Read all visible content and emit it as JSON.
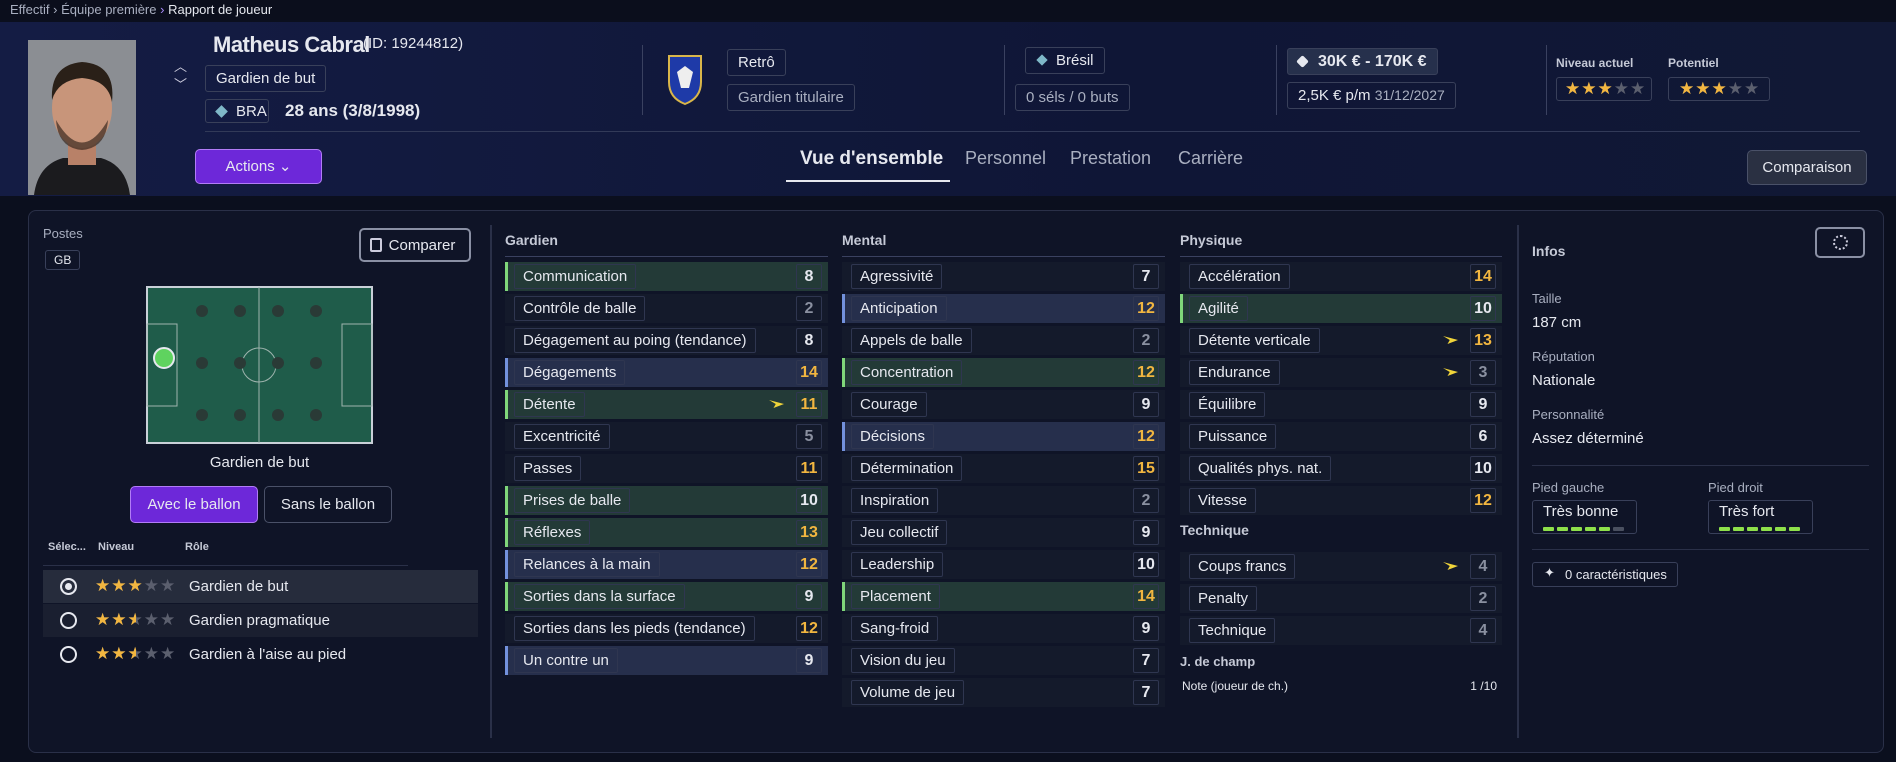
{
  "breadcrumb": [
    "Effectif",
    "Équipe première",
    "Rapport de joueur"
  ],
  "header": {
    "name": "Matheus Cabral",
    "id": "(ID: 19244812)",
    "position": "Gardien de but",
    "nation_code": "BRA",
    "age": "28 ans (3/8/1998)",
    "club": "Retrô",
    "squad_status": "Gardien titulaire",
    "country": "Brésil",
    "caps": "0 séls / 0 buts",
    "value": "30K € - 170K €",
    "wage": "2,5K € p/m",
    "contract_end": "31/12/2027",
    "current_ability": {
      "label": "Niveau actuel",
      "stars": 3
    },
    "potential_ability": {
      "label": "Potentiel",
      "stars": 3
    },
    "actions": "Actions",
    "compare": "Comparaison"
  },
  "tabs": [
    "Vue d'ensemble",
    "Personnel",
    "Prestation",
    "Carrière"
  ],
  "positions": {
    "title": "Postes",
    "code": "GB",
    "compare": "Comparer",
    "selected": "Gardien de but",
    "toggle": [
      "Avec le ballon",
      "Sans le ballon"
    ],
    "columns": [
      "Sélec...",
      "Niveau",
      "Rôle"
    ],
    "roles": [
      {
        "name": "Gardien de but",
        "stars": 3
      },
      {
        "name": "Gardien pragmatique",
        "stars": 2.5
      },
      {
        "name": "Gardien à l'aise au pied",
        "stars": 2.5
      }
    ]
  },
  "attributes": [
    {
      "title": "Gardien",
      "rows": [
        {
          "name": "Communication",
          "value": 8,
          "tint": "green"
        },
        {
          "name": "Contrôle de balle",
          "value": 2
        },
        {
          "name": "Dégagement au poing (tendance)",
          "value": 8
        },
        {
          "name": "Dégagements",
          "value": 14,
          "tint": "blue"
        },
        {
          "name": "Détente",
          "value": 11,
          "tint": "green",
          "arrow": true
        },
        {
          "name": "Excentricité",
          "value": 5
        },
        {
          "name": "Passes",
          "value": 11
        },
        {
          "name": "Prises de balle",
          "value": 10,
          "tint": "green"
        },
        {
          "name": "Réflexes",
          "value": 13,
          "tint": "green"
        },
        {
          "name": "Relances à la main",
          "value": 12,
          "tint": "blue"
        },
        {
          "name": "Sorties dans la surface",
          "value": 9,
          "tint": "green"
        },
        {
          "name": "Sorties dans les pieds (tendance)",
          "value": 12
        },
        {
          "name": "Un contre un",
          "value": 9,
          "tint": "blue"
        }
      ]
    },
    {
      "title": "Mental",
      "rows": [
        {
          "name": "Agressivité",
          "value": 7
        },
        {
          "name": "Anticipation",
          "value": 12,
          "tint": "blue"
        },
        {
          "name": "Appels de balle",
          "value": 2
        },
        {
          "name": "Concentration",
          "value": 12,
          "tint": "green"
        },
        {
          "name": "Courage",
          "value": 9
        },
        {
          "name": "Décisions",
          "value": 12,
          "tint": "blue"
        },
        {
          "name": "Détermination",
          "value": 15
        },
        {
          "name": "Inspiration",
          "value": 2
        },
        {
          "name": "Jeu collectif",
          "value": 9
        },
        {
          "name": "Leadership",
          "value": 10
        },
        {
          "name": "Placement",
          "value": 14,
          "tint": "green"
        },
        {
          "name": "Sang-froid",
          "value": 9
        },
        {
          "name": "Vision du jeu",
          "value": 7
        },
        {
          "name": "Volume de jeu",
          "value": 7
        }
      ]
    },
    {
      "title": "Physique",
      "rows": [
        {
          "name": "Accélération",
          "value": 14
        },
        {
          "name": "Agilité",
          "value": 10,
          "tint": "green"
        },
        {
          "name": "Détente verticale",
          "value": 13,
          "arrow": true
        },
        {
          "name": "Endurance",
          "value": 3,
          "arrow": true
        },
        {
          "name": "Équilibre",
          "value": 9
        },
        {
          "name": "Puissance",
          "value": 6
        },
        {
          "name": "Qualités phys. nat.",
          "value": 10
        },
        {
          "name": "Vitesse",
          "value": 12
        }
      ]
    },
    {
      "title": "Technique",
      "rows": [
        {
          "name": "Coups francs",
          "value": 4,
          "arrow": true
        },
        {
          "name": "Penalty",
          "value": 2
        },
        {
          "name": "Technique",
          "value": 4
        }
      ]
    }
  ],
  "outfield": {
    "title": "J. de champ",
    "label": "Note (joueur de ch.)",
    "value": "1 /10"
  },
  "info": {
    "title": "Infos",
    "height": {
      "label": "Taille",
      "value": "187 cm"
    },
    "reputation": {
      "label": "Réputation",
      "value": "Nationale"
    },
    "personality": {
      "label": "Personnalité",
      "value": "Assez déterminé"
    },
    "left_foot": {
      "label": "Pied gauche",
      "value": "Très bonne",
      "level": 5
    },
    "right_foot": {
      "label": "Pied droit",
      "value": "Très fort",
      "level": 6
    },
    "traits": "0 caractéristiques"
  }
}
